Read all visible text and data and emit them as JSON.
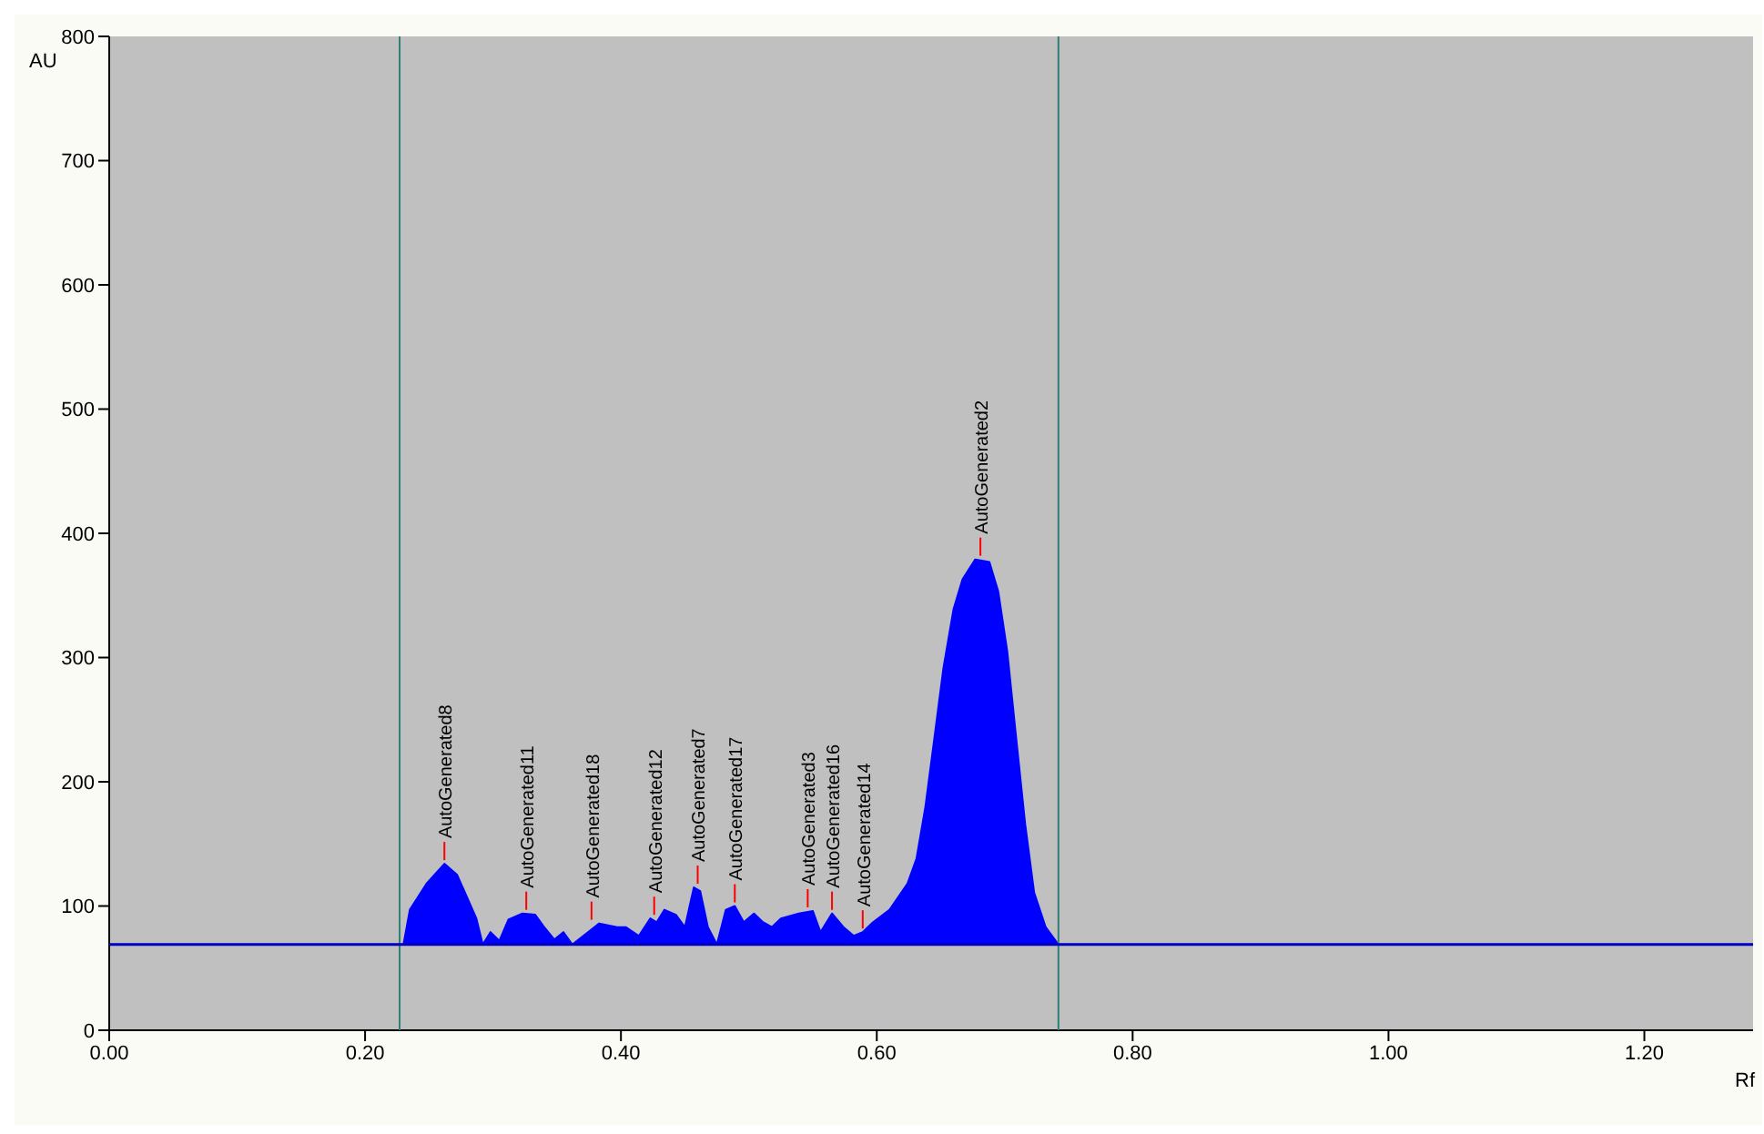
{
  "chart_data": {
    "type": "area",
    "xlabel": "Rf",
    "ylabel": "AU",
    "x": [
      0.23,
      0.235,
      0.248,
      0.262,
      0.272,
      0.287,
      0.292,
      0.298,
      0.305,
      0.312,
      0.323,
      0.333,
      0.34,
      0.348,
      0.355,
      0.362,
      0.383,
      0.397,
      0.404,
      0.414,
      0.423,
      0.428,
      0.434,
      0.443,
      0.45,
      0.457,
      0.462,
      0.468,
      0.475,
      0.482,
      0.489,
      0.496,
      0.504,
      0.511,
      0.518,
      0.525,
      0.539,
      0.55,
      0.556,
      0.565,
      0.574,
      0.582,
      0.589,
      0.596,
      0.61,
      0.624,
      0.631,
      0.638,
      0.645,
      0.652,
      0.66,
      0.667,
      0.677,
      0.688,
      0.695,
      0.702,
      0.709,
      0.716,
      0.723,
      0.732,
      0.742
    ],
    "series": [
      {
        "color": "#0000ff",
        "values": [
          69,
          97,
          118,
          134,
          125,
          90,
          69,
          79,
          72,
          89,
          94,
          93,
          83,
          73,
          79,
          69,
          86,
          83,
          83,
          76,
          90,
          87,
          97,
          93,
          83,
          115,
          112,
          83,
          69,
          97,
          100,
          87,
          94,
          87,
          83,
          90,
          94,
          96,
          79,
          94,
          83,
          76,
          79,
          86,
          97,
          118,
          138,
          180,
          235,
          291,
          339,
          363,
          379,
          377,
          353,
          305,
          235,
          166,
          111,
          83,
          69
        ]
      }
    ],
    "xlim": [
      0,
      1.285
    ],
    "ylim": [
      0,
      800
    ],
    "xticks": [
      {
        "value": 0,
        "label": "0.00"
      },
      {
        "value": 0.2,
        "label": "0.20"
      },
      {
        "value": 0.4,
        "label": "0.40"
      },
      {
        "value": 0.6,
        "label": "0.60"
      },
      {
        "value": 0.8,
        "label": "0.80"
      },
      {
        "value": 1.0,
        "label": "1.00"
      },
      {
        "value": 1.2,
        "label": "1.20"
      }
    ],
    "yticks": [
      0,
      100,
      200,
      300,
      400,
      500,
      600,
      700,
      800
    ],
    "ref_lines": [
      {
        "axis": "x",
        "value": 0.227,
        "color": "#2f7f74"
      },
      {
        "axis": "x",
        "value": 0.742,
        "color": "#2f7f74"
      },
      {
        "axis": "y",
        "value": 69,
        "color": "#0000c0"
      }
    ],
    "annotations": [
      {
        "text": "AutoGenerated8",
        "x": 0.262,
        "y": 134
      },
      {
        "text": "AutoGenerated11",
        "x": 0.326,
        "y": 94
      },
      {
        "text": "AutoGenerated18",
        "x": 0.377,
        "y": 86
      },
      {
        "text": "AutoGenerated12",
        "x": 0.426,
        "y": 90
      },
      {
        "text": "AutoGenerated7",
        "x": 0.46,
        "y": 115
      },
      {
        "text": "AutoGenerated17",
        "x": 0.489,
        "y": 100
      },
      {
        "text": "AutoGenerated3",
        "x": 0.546,
        "y": 96
      },
      {
        "text": "AutoGenerated16",
        "x": 0.565,
        "y": 94
      },
      {
        "text": "AutoGenerated14",
        "x": 0.589,
        "y": 79
      },
      {
        "text": "AutoGenerated2",
        "x": 0.681,
        "y": 379
      }
    ],
    "grid": false
  }
}
